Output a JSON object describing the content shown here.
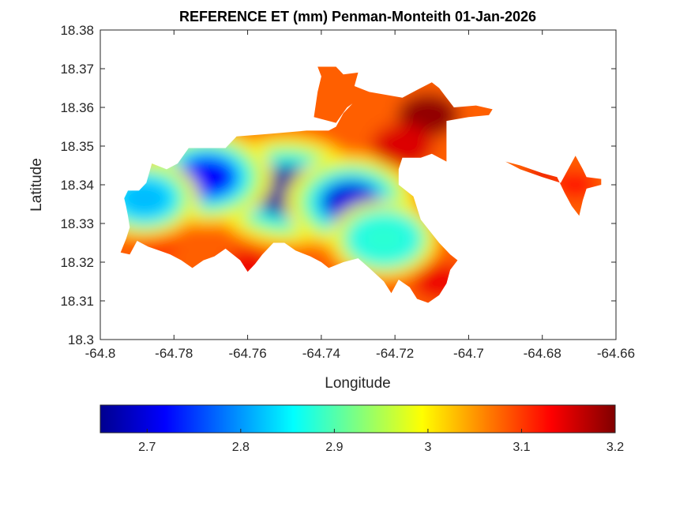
{
  "chart_data": {
    "type": "heatmap",
    "title": "REFERENCE ET (mm) Penman-Monteith 01-Jan-2026",
    "xlabel": "Longitude",
    "ylabel": "Latitude",
    "xlim": [
      -64.8,
      -64.66
    ],
    "ylim": [
      18.3,
      18.38
    ],
    "x_ticks": [
      "-64.8",
      "-64.78",
      "-64.76",
      "-64.74",
      "-64.72",
      "-64.7",
      "-64.68",
      "-64.66"
    ],
    "y_ticks": [
      "18.3",
      "18.31",
      "18.32",
      "18.33",
      "18.34",
      "18.35",
      "18.36",
      "18.37",
      "18.38"
    ],
    "colormap": "jet",
    "colorbar": {
      "position": "bottom",
      "range": [
        2.65,
        3.2
      ],
      "ticks": [
        "2.7",
        "2.8",
        "2.9",
        "3",
        "3.1",
        "3.2"
      ]
    },
    "grid": false,
    "region_outline": [
      [
        -64.7935,
        18.3365
      ],
      [
        -64.7925,
        18.3385
      ],
      [
        -64.7895,
        18.3385
      ],
      [
        -64.7875,
        18.3405
      ],
      [
        -64.786,
        18.3455
      ],
      [
        -64.782,
        18.344
      ],
      [
        -64.779,
        18.3455
      ],
      [
        -64.776,
        18.3495
      ],
      [
        -64.766,
        18.3495
      ],
      [
        -64.763,
        18.3525
      ],
      [
        -64.756,
        18.353
      ],
      [
        -64.744,
        18.354
      ],
      [
        -64.738,
        18.354
      ],
      [
        -64.736,
        18.355
      ],
      [
        -64.734,
        18.3585
      ],
      [
        -64.731,
        18.3615
      ],
      [
        -64.727,
        18.364
      ],
      [
        -64.718,
        18.3625
      ],
      [
        -64.714,
        18.3645
      ],
      [
        -64.71,
        18.3665
      ],
      [
        -64.708,
        18.365
      ],
      [
        -64.706,
        18.3625
      ],
      [
        -64.704,
        18.36
      ],
      [
        -64.698,
        18.3605
      ],
      [
        -64.6935,
        18.3595
      ],
      [
        -64.6945,
        18.358
      ],
      [
        -64.7,
        18.3575
      ],
      [
        -64.706,
        18.3565
      ],
      [
        -64.706,
        18.346
      ],
      [
        -64.71,
        18.348
      ],
      [
        -64.713,
        18.347
      ],
      [
        -64.718,
        18.347
      ],
      [
        -64.719,
        18.344
      ],
      [
        -64.719,
        18.34
      ],
      [
        -64.715,
        18.337
      ],
      [
        -64.713,
        18.331
      ],
      [
        -64.708,
        18.325
      ],
      [
        -64.705,
        18.322
      ],
      [
        -64.703,
        18.3205
      ],
      [
        -64.705,
        18.318
      ],
      [
        -64.706,
        18.3145
      ],
      [
        -64.708,
        18.3115
      ],
      [
        -64.711,
        18.3095
      ],
      [
        -64.714,
        18.3105
      ],
      [
        -64.716,
        18.3135
      ],
      [
        -64.719,
        18.3155
      ],
      [
        -64.721,
        18.312
      ],
      [
        -64.723,
        18.315
      ],
      [
        -64.727,
        18.3185
      ],
      [
        -64.73,
        18.321
      ],
      [
        -64.734,
        18.32
      ],
      [
        -64.738,
        18.3185
      ],
      [
        -64.74,
        18.32
      ],
      [
        -64.743,
        18.3215
      ],
      [
        -64.747,
        18.323
      ],
      [
        -64.75,
        18.325
      ],
      [
        -64.753,
        18.325
      ],
      [
        -64.756,
        18.322
      ],
      [
        -64.758,
        18.3195
      ],
      [
        -64.76,
        18.3175
      ],
      [
        -64.762,
        18.3205
      ],
      [
        -64.766,
        18.3235
      ],
      [
        -64.769,
        18.3215
      ],
      [
        -64.772,
        18.3205
      ],
      [
        -64.775,
        18.3185
      ],
      [
        -64.778,
        18.3205
      ],
      [
        -64.781,
        18.322
      ],
      [
        -64.784,
        18.323
      ],
      [
        -64.787,
        18.324
      ],
      [
        -64.79,
        18.3255
      ],
      [
        -64.792,
        18.322
      ],
      [
        -64.7945,
        18.3225
      ],
      [
        -64.793,
        18.326
      ],
      [
        -64.792,
        18.329
      ],
      [
        -64.7925,
        18.332
      ],
      [
        -64.793,
        18.3345
      ]
    ],
    "northern_lobe_outline": [
      [
        -64.742,
        18.3575
      ],
      [
        -64.741,
        18.364
      ],
      [
        -64.74,
        18.368
      ],
      [
        -64.741,
        18.3705
      ],
      [
        -64.736,
        18.3705
      ],
      [
        -64.734,
        18.3685
      ],
      [
        -64.73,
        18.369
      ],
      [
        -64.731,
        18.3655
      ],
      [
        -64.727,
        18.364
      ],
      [
        -64.733,
        18.36
      ],
      [
        -64.736,
        18.356
      ]
    ],
    "eastern_arm_outline": [
      [
        -64.69,
        18.346
      ],
      [
        -64.686,
        18.344
      ],
      [
        -64.68,
        18.342
      ],
      [
        -64.675,
        18.3405
      ],
      [
        -64.673,
        18.344
      ],
      [
        -64.671,
        18.3475
      ],
      [
        -64.669,
        18.344
      ],
      [
        -64.668,
        18.342
      ],
      [
        -64.664,
        18.3415
      ],
      [
        -64.664,
        18.34
      ],
      [
        -64.668,
        18.339
      ],
      [
        -64.669,
        18.336
      ],
      [
        -64.67,
        18.332
      ],
      [
        -64.672,
        18.3345
      ],
      [
        -64.674,
        18.338
      ],
      [
        -64.676,
        18.342
      ],
      [
        -64.68,
        18.343
      ],
      [
        -64.686,
        18.345
      ]
    ],
    "field_centers": [
      {
        "lon": -64.7495,
        "lat": 18.3385,
        "value": 2.66,
        "spread": 0.007
      },
      {
        "lon": -64.732,
        "lat": 18.3355,
        "value": 2.7,
        "spread": 0.006
      },
      {
        "lon": -64.771,
        "lat": 18.342,
        "value": 2.72,
        "spread": 0.006
      },
      {
        "lon": -64.788,
        "lat": 18.3365,
        "value": 2.82,
        "spread": 0.005
      },
      {
        "lon": -64.723,
        "lat": 18.326,
        "value": 2.88,
        "spread": 0.005
      },
      {
        "lon": -64.711,
        "lat": 18.358,
        "value": 3.19,
        "spread": 0.006
      },
      {
        "lon": -64.718,
        "lat": 18.35,
        "value": 3.15,
        "spread": 0.006
      },
      {
        "lon": -64.708,
        "lat": 18.315,
        "value": 3.14,
        "spread": 0.005
      },
      {
        "lon": -64.76,
        "lat": 18.319,
        "value": 3.14,
        "spread": 0.0045
      },
      {
        "lon": -64.785,
        "lat": 18.324,
        "value": 3.1,
        "spread": 0.004
      },
      {
        "lon": -64.671,
        "lat": 18.34,
        "value": 3.12,
        "spread": 0.004
      },
      {
        "lon": -64.68,
        "lat": 18.343,
        "value": 3.14,
        "spread": 0.003
      }
    ]
  }
}
